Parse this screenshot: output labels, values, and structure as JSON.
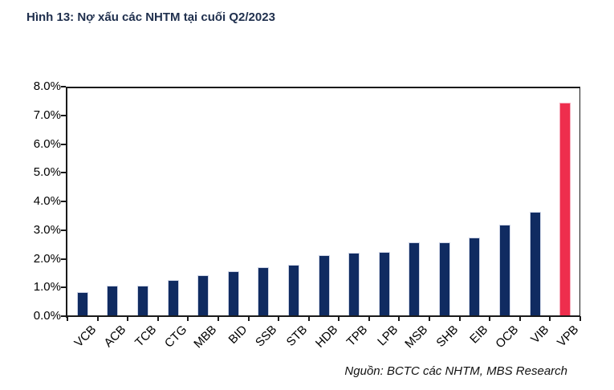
{
  "chart_data": {
    "type": "bar",
    "title": "Hình 13: Nợ xấu các NHTM tại cuối Q2/2023",
    "source_note": "Nguồn: BCTC các NHTM, MBS Research",
    "categories": [
      "VCB",
      "ACB",
      "TCB",
      "CTG",
      "MBB",
      "BID",
      "SSB",
      "STB",
      "HDB",
      "TPB",
      "LPB",
      "MSB",
      "SHB",
      "EIB",
      "OCB",
      "VIB",
      "VPB"
    ],
    "values": [
      0.83,
      1.05,
      1.07,
      1.26,
      1.43,
      1.58,
      1.71,
      1.78,
      2.12,
      2.2,
      2.23,
      2.56,
      2.57,
      2.75,
      3.18,
      3.64,
      7.45
    ],
    "unit": "%",
    "highlight_category": "VPB",
    "xlabel": "",
    "ylabel": "",
    "ylim": [
      0,
      8
    ],
    "ytick_step": 1.0,
    "ytick_labels": [
      "0.0%",
      "1.0%",
      "2.0%",
      "3.0%",
      "4.0%",
      "5.0%",
      "6.0%",
      "7.0%",
      "8.0%"
    ],
    "grid": false,
    "legend": false,
    "colors": {
      "bar": "#102B61",
      "bar_edge": "#CDD4E6",
      "highlight": "#EE2E4D",
      "highlight_edge": "#F6A9BA",
      "axis": "#1a1a1a",
      "title_text": "#20304E",
      "label_text": "#000000"
    }
  }
}
